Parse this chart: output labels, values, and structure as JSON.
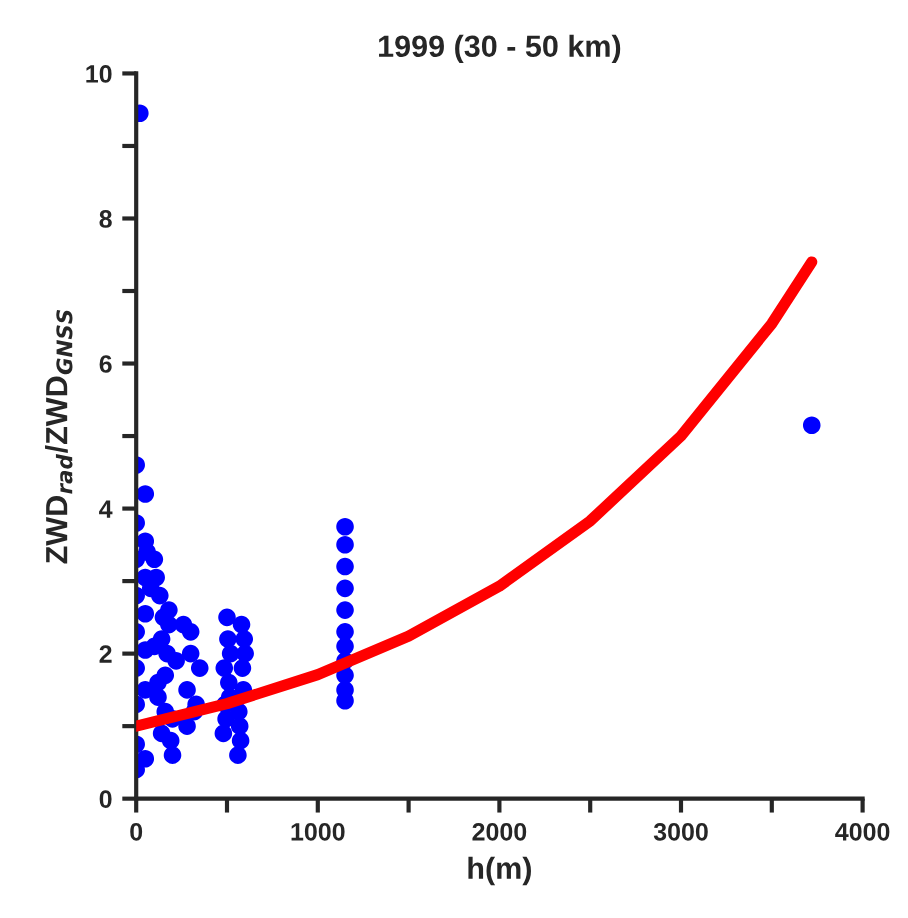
{
  "chart_data": {
    "type": "scatter",
    "title": "1999 (30 - 50 km)",
    "xlabel": "h(m)",
    "ylabel": "ZWD$_{rad}$/ZWD$_{GNSS}$",
    "xlim": [
      0,
      4000
    ],
    "xticks": [
      0,
      {
        "value": 500,
        "label": null
      },
      1000,
      {
        "value": 1500,
        "label": null
      },
      2000,
      {
        "value": 2500,
        "label": null
      },
      3000,
      {
        "value": 3500,
        "label": null
      },
      4000
    ],
    "ylim": [
      0,
      10
    ],
    "yticks": [
      0,
      {
        "value": 1,
        "label": null
      },
      2,
      {
        "value": 3,
        "label": null
      },
      4,
      {
        "value": 5,
        "label": null
      },
      6,
      {
        "value": 7,
        "label": null
      },
      8,
      {
        "value": 9,
        "label": null
      },
      10
    ],
    "grid": false,
    "legend": false,
    "series": [
      {
        "color": "#0000ff",
        "marker": "circle",
        "x": [
          20,
          0,
          0,
          0,
          0,
          0,
          0,
          0,
          0,
          0,
          50,
          50,
          50,
          50,
          50,
          50,
          50,
          60,
          80,
          100,
          120,
          140,
          160,
          180,
          200,
          100,
          130,
          160,
          190,
          110,
          150,
          170,
          120,
          140,
          200,
          220,
          180,
          260,
          280,
          300,
          330,
          350,
          280,
          320,
          300,
          480,
          490,
          500,
          510,
          520,
          495,
          505,
          485,
          515,
          560,
          570,
          580,
          590,
          600,
          575,
          585,
          565,
          595,
          1150,
          1150,
          1150,
          1150,
          1150,
          1150,
          1150,
          1150,
          1150,
          1150,
          1150,
          3720
        ],
        "values": [
          9.45,
          0.4,
          0.75,
          1.3,
          1.8,
          2.3,
          2.8,
          3.3,
          3.8,
          4.6,
          0.55,
          1.5,
          2.05,
          2.55,
          3.05,
          3.55,
          4.2,
          3.4,
          2.9,
          2.1,
          1.4,
          0.9,
          1.7,
          2.4,
          0.6,
          3.3,
          2.8,
          1.2,
          0.8,
          3.05,
          2.5,
          2.0,
          1.6,
          2.2,
          1.1,
          1.9,
          2.6,
          2.4,
          1.0,
          2.3,
          1.3,
          1.8,
          1.5,
          1.2,
          2.0,
          0.9,
          1.3,
          2.5,
          1.6,
          2.0,
          1.1,
          2.2,
          1.8,
          1.4,
          0.6,
          1.0,
          2.4,
          1.5,
          2.0,
          0.8,
          1.8,
          1.2,
          2.2,
          1.35,
          1.5,
          1.7,
          1.9,
          2.1,
          2.3,
          2.6,
          2.9,
          3.2,
          3.5,
          3.75,
          5.15
        ]
      },
      {
        "type": "line",
        "color": "#ff0000",
        "x": [
          0,
          500,
          1000,
          1500,
          2000,
          2500,
          3000,
          3500,
          3720
        ],
        "values": [
          1.0,
          1.31,
          1.71,
          2.24,
          2.93,
          3.83,
          5.0,
          6.55,
          7.4
        ]
      }
    ]
  }
}
